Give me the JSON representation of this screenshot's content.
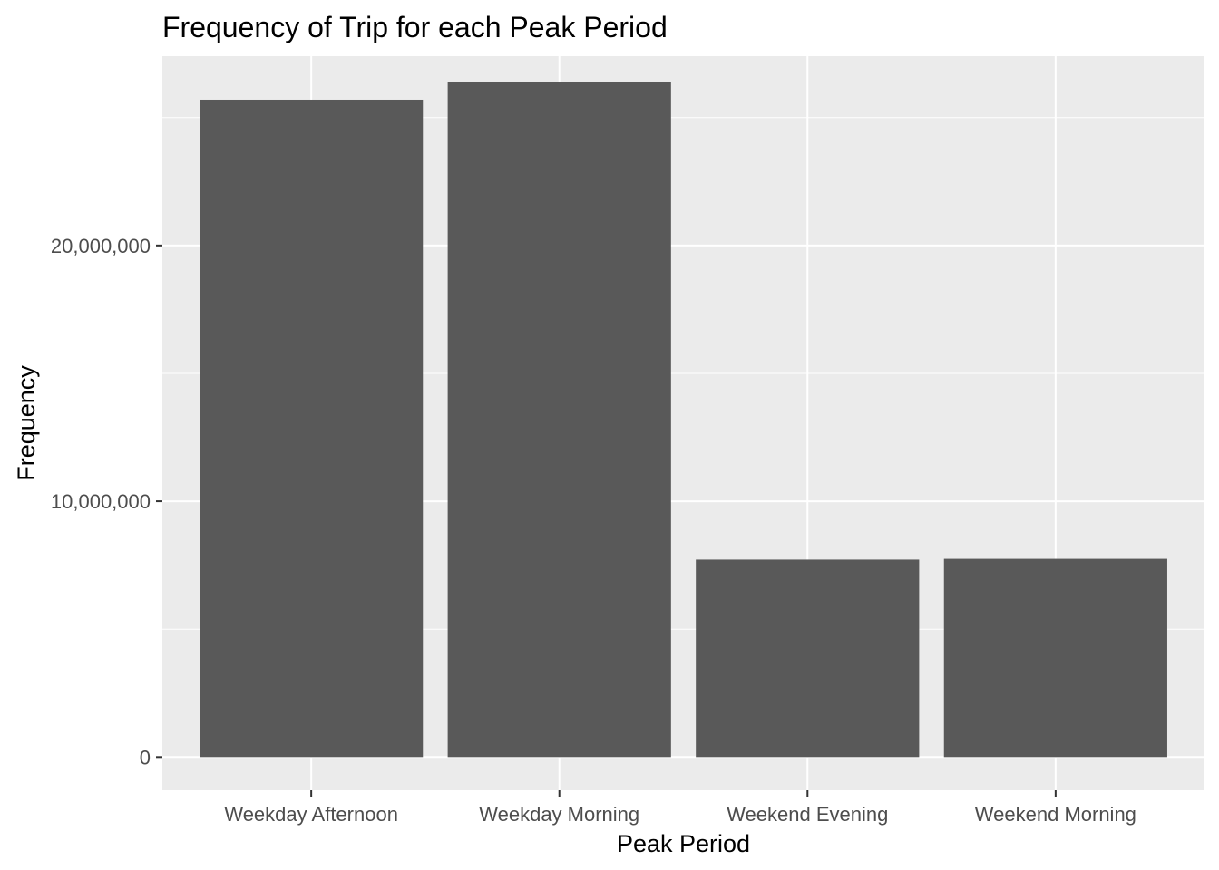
{
  "chart_data": {
    "type": "bar",
    "title": "Frequency of Trip for each Peak Period",
    "xlabel": "Peak Period",
    "ylabel": "Frequency",
    "categories": [
      "Weekday Afternoon",
      "Weekday Morning",
      "Weekend Evening",
      "Weekend Morning"
    ],
    "values": [
      25700000,
      26380000,
      7720000,
      7750000
    ],
    "ylim": [
      -1300000,
      27400000
    ],
    "yticks": [
      0,
      10000000,
      20000000
    ],
    "ytick_labels": [
      "0",
      "10,000,000",
      "20,000,000"
    ],
    "grid": true,
    "legend": "none",
    "colors": {
      "bar": "#595959",
      "panel_background": "#ebebeb",
      "grid_line": "#ffffff",
      "tick_mark": "#333333",
      "tick_text": "#4d4d4d",
      "title_text": "#000000"
    }
  }
}
